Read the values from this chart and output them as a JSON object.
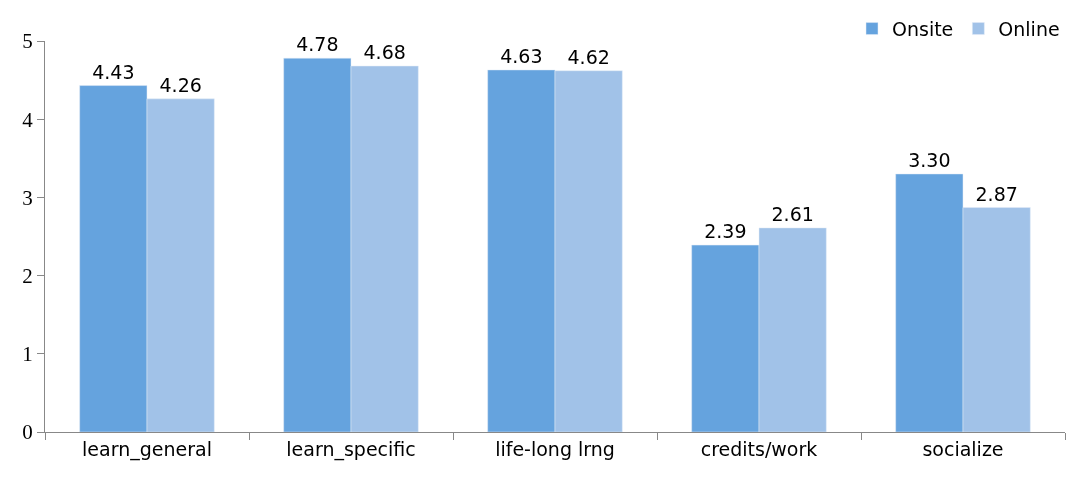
{
  "chart_data": {
    "type": "bar",
    "categories": [
      "learn_general",
      "learn_specific",
      "life-long lrng",
      "credits/work",
      "socialize"
    ],
    "series": [
      {
        "name": "Onsite",
        "color": "#65a3de",
        "values": [
          4.43,
          4.78,
          4.63,
          2.39,
          3.3
        ],
        "value_labels": [
          "4.43",
          "4.78",
          "4.63",
          "2.39",
          "3.30"
        ]
      },
      {
        "name": "Online",
        "color": "#a1c2e8",
        "values": [
          4.26,
          4.68,
          4.62,
          2.61,
          2.87
        ],
        "value_labels": [
          "4.26",
          "4.68",
          "4.62",
          "2.61",
          "2.87"
        ]
      }
    ],
    "ylim": [
      0,
      5
    ],
    "yticks": [
      0,
      1,
      2,
      3,
      4,
      5
    ],
    "legend": "top right"
  }
}
